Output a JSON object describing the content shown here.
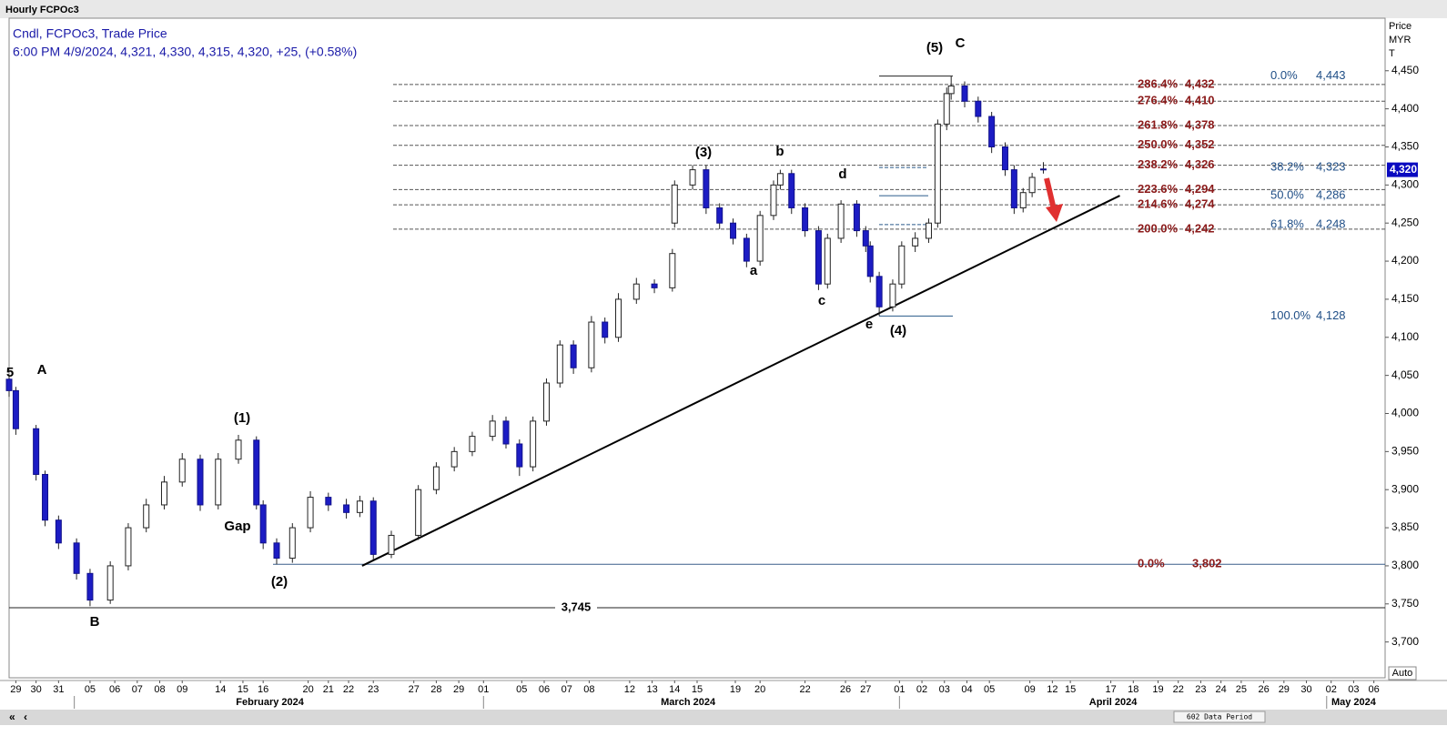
{
  "chart_data": {
    "type": "candlestick",
    "title": "Hourly FCPOc3",
    "legend_line1": "Cndl, FCPOc3, Trade Price",
    "legend_line2": "6:00 PM 4/9/2024, 4,321, 4,330, 4,315, 4,320, +25, (+0.58%)",
    "y_axis_label": [
      "Price",
      "MYR",
      "T"
    ],
    "last_price": {
      "value": 4320,
      "label": "4,320"
    },
    "auto_label": "Auto",
    "scroll_label": "602 Data Period",
    "ylim": [
      3653,
      4519
    ],
    "yticks": [
      {
        "value": 3700,
        "label": "3,700"
      },
      {
        "value": 3750,
        "label": "3,750"
      },
      {
        "value": 3800,
        "label": "3,800"
      },
      {
        "value": 3850,
        "label": "3,850"
      },
      {
        "value": 3900,
        "label": "3,900"
      },
      {
        "value": 3950,
        "label": "3,950"
      },
      {
        "value": 4000,
        "label": "4,000"
      },
      {
        "value": 4050,
        "label": "4,050"
      },
      {
        "value": 4100,
        "label": "4,100"
      },
      {
        "value": 4150,
        "label": "4,150"
      },
      {
        "value": 4200,
        "label": "4,200"
      },
      {
        "value": 4250,
        "label": "4,250"
      },
      {
        "value": 4300,
        "label": "4,300"
      },
      {
        "value": 4350,
        "label": "4,350"
      },
      {
        "value": 4400,
        "label": "4,400"
      },
      {
        "value": 4450,
        "label": "4,450"
      }
    ],
    "xlim": [
      0,
      61.2
    ],
    "xticks": [
      {
        "value": 0.3,
        "label": "29"
      },
      {
        "value": 1.2,
        "label": "30"
      },
      {
        "value": 2.2,
        "label": "31"
      },
      {
        "value": 3.6,
        "label": "05"
      },
      {
        "value": 4.7,
        "label": "06"
      },
      {
        "value": 5.7,
        "label": "07"
      },
      {
        "value": 6.7,
        "label": "08"
      },
      {
        "value": 7.7,
        "label": "09"
      },
      {
        "value": 9.4,
        "label": "14"
      },
      {
        "value": 10.4,
        "label": "15"
      },
      {
        "value": 11.3,
        "label": "16"
      },
      {
        "value": 13.3,
        "label": "20"
      },
      {
        "value": 14.2,
        "label": "21"
      },
      {
        "value": 15.1,
        "label": "22"
      },
      {
        "value": 16.2,
        "label": "23"
      },
      {
        "value": 18.0,
        "label": "27"
      },
      {
        "value": 19.0,
        "label": "28"
      },
      {
        "value": 20.0,
        "label": "29"
      },
      {
        "value": 21.1,
        "label": "01"
      },
      {
        "value": 22.8,
        "label": "05"
      },
      {
        "value": 23.8,
        "label": "06"
      },
      {
        "value": 24.8,
        "label": "07"
      },
      {
        "value": 25.8,
        "label": "08"
      },
      {
        "value": 27.6,
        "label": "12"
      },
      {
        "value": 28.6,
        "label": "13"
      },
      {
        "value": 29.6,
        "label": "14"
      },
      {
        "value": 30.6,
        "label": "15"
      },
      {
        "value": 32.3,
        "label": "19"
      },
      {
        "value": 33.4,
        "label": "20"
      },
      {
        "value": 35.4,
        "label": "22"
      },
      {
        "value": 37.2,
        "label": "26"
      },
      {
        "value": 38.1,
        "label": "27"
      },
      {
        "value": 39.6,
        "label": "01"
      },
      {
        "value": 40.6,
        "label": "02"
      },
      {
        "value": 41.6,
        "label": "03"
      },
      {
        "value": 42.6,
        "label": "04"
      },
      {
        "value": 43.6,
        "label": "05"
      },
      {
        "value": 45.4,
        "label": "09"
      },
      {
        "value": 46.4,
        "label": "12"
      },
      {
        "value": 47.2,
        "label": "15"
      },
      {
        "value": 49.0,
        "label": "17"
      },
      {
        "value": 50.0,
        "label": "18"
      },
      {
        "value": 51.1,
        "label": "19"
      },
      {
        "value": 52.0,
        "label": "22"
      },
      {
        "value": 53.0,
        "label": "23"
      },
      {
        "value": 53.9,
        "label": "24"
      },
      {
        "value": 54.8,
        "label": "25"
      },
      {
        "value": 55.8,
        "label": "26"
      },
      {
        "value": 56.7,
        "label": "29"
      },
      {
        "value": 57.7,
        "label": "30"
      },
      {
        "value": 58.8,
        "label": "02"
      },
      {
        "value": 59.8,
        "label": "03"
      },
      {
        "value": 60.7,
        "label": "06"
      }
    ],
    "months": [
      {
        "value": 11.6,
        "label": "February 2024",
        "start": 2.9
      },
      {
        "value": 30.2,
        "label": "March 2024",
        "start": 21.1
      },
      {
        "value": 49.1,
        "label": "April 2024",
        "start": 39.6
      },
      {
        "value": 59.8,
        "label": "May 2024",
        "start": 58.6
      }
    ],
    "candles": {
      "x": [
        0.0,
        0.3,
        1.2,
        1.6,
        2.2,
        3.0,
        3.6,
        4.5,
        5.3,
        6.1,
        6.9,
        7.7,
        8.5,
        9.3,
        10.2,
        11.0,
        11.3,
        11.9,
        12.6,
        13.4,
        14.2,
        15.0,
        15.6,
        16.2,
        17.0,
        18.2,
        19.0,
        19.8,
        20.6,
        21.5,
        22.1,
        22.7,
        23.3,
        23.9,
        24.5,
        25.1,
        25.9,
        26.5,
        27.1,
        27.9,
        28.7,
        29.5,
        29.6,
        30.4,
        31.0,
        31.6,
        32.2,
        32.8,
        33.4,
        34.0,
        34.3,
        34.8,
        35.4,
        36.0,
        36.4,
        37.0,
        37.7,
        38.1,
        38.3,
        38.7,
        39.3,
        39.7,
        40.3,
        40.9,
        41.3,
        41.7,
        41.9,
        42.5,
        43.1,
        43.7,
        44.3,
        44.7,
        45.1,
        45.5,
        46.0
      ],
      "ohlc": [
        [
          4045,
          4050,
          4022,
          4030
        ],
        [
          4030,
          4035,
          3972,
          3980
        ],
        [
          3980,
          3985,
          3912,
          3920
        ],
        [
          3920,
          3925,
          3852,
          3860
        ],
        [
          3860,
          3866,
          3822,
          3830
        ],
        [
          3830,
          3836,
          3782,
          3790
        ],
        [
          3790,
          3796,
          3747,
          3755
        ],
        [
          3755,
          3806,
          3750,
          3800
        ],
        [
          3800,
          3856,
          3794,
          3850
        ],
        [
          3850,
          3888,
          3844,
          3880
        ],
        [
          3880,
          3918,
          3874,
          3910
        ],
        [
          3910,
          3948,
          3904,
          3940
        ],
        [
          3940,
          3946,
          3872,
          3880
        ],
        [
          3880,
          3948,
          3874,
          3940
        ],
        [
          3940,
          3972,
          3934,
          3965
        ],
        [
          3965,
          3970,
          3874,
          3880
        ],
        [
          3880,
          3886,
          3822,
          3830
        ],
        [
          3830,
          3836,
          3802,
          3810
        ],
        [
          3810,
          3856,
          3804,
          3850
        ],
        [
          3850,
          3898,
          3844,
          3890
        ],
        [
          3890,
          3896,
          3872,
          3880
        ],
        [
          3880,
          3888,
          3862,
          3870
        ],
        [
          3870,
          3892,
          3864,
          3885
        ],
        [
          3885,
          3890,
          3808,
          3815
        ],
        [
          3815,
          3846,
          3810,
          3840
        ],
        [
          3840,
          3906,
          3834,
          3900
        ],
        [
          3900,
          3936,
          3894,
          3930
        ],
        [
          3930,
          3956,
          3924,
          3950
        ],
        [
          3950,
          3976,
          3944,
          3970
        ],
        [
          3970,
          3998,
          3964,
          3990
        ],
        [
          3990,
          3996,
          3954,
          3960
        ],
        [
          3960,
          3966,
          3918,
          3930
        ],
        [
          3930,
          3996,
          3924,
          3990
        ],
        [
          3990,
          4046,
          3984,
          4040
        ],
        [
          4040,
          4096,
          4034,
          4090
        ],
        [
          4090,
          4096,
          4052,
          4060
        ],
        [
          4060,
          4128,
          4054,
          4120
        ],
        [
          4120,
          4126,
          4092,
          4100
        ],
        [
          4100,
          4158,
          4094,
          4150
        ],
        [
          4150,
          4178,
          4144,
          4170
        ],
        [
          4170,
          4176,
          4158,
          4165
        ],
        [
          4165,
          4216,
          4160,
          4210
        ],
        [
          4250,
          4306,
          4244,
          4300
        ],
        [
          4300,
          4326,
          4294,
          4320
        ],
        [
          4320,
          4326,
          4262,
          4270
        ],
        [
          4270,
          4276,
          4242,
          4250
        ],
        [
          4250,
          4256,
          4222,
          4230
        ],
        [
          4230,
          4236,
          4192,
          4200
        ],
        [
          4200,
          4266,
          4194,
          4260
        ],
        [
          4260,
          4306,
          4254,
          4300
        ],
        [
          4300,
          4320,
          4294,
          4315
        ],
        [
          4315,
          4320,
          4262,
          4270
        ],
        [
          4270,
          4276,
          4232,
          4240
        ],
        [
          4240,
          4246,
          4162,
          4170
        ],
        [
          4170,
          4236,
          4164,
          4230
        ],
        [
          4230,
          4280,
          4224,
          4275
        ],
        [
          4275,
          4280,
          4232,
          4240
        ],
        [
          4240,
          4246,
          4212,
          4220
        ],
        [
          4220,
          4226,
          4172,
          4180
        ],
        [
          4180,
          4186,
          4128,
          4140
        ],
        [
          4140,
          4176,
          4134,
          4170
        ],
        [
          4170,
          4226,
          4164,
          4220
        ],
        [
          4220,
          4238,
          4212,
          4230
        ],
        [
          4230,
          4256,
          4224,
          4250
        ],
        [
          4250,
          4386,
          4244,
          4380
        ],
        [
          4380,
          4428,
          4372,
          4420
        ],
        [
          4420,
          4443,
          4412,
          4430
        ],
        [
          4430,
          4436,
          4402,
          4410
        ],
        [
          4410,
          4416,
          4382,
          4390
        ],
        [
          4390,
          4396,
          4342,
          4350
        ],
        [
          4350,
          4356,
          4312,
          4320
        ],
        [
          4320,
          4326,
          4262,
          4270
        ],
        [
          4270,
          4296,
          4264,
          4290
        ],
        [
          4290,
          4316,
          4284,
          4310
        ],
        [
          4321,
          4330,
          4315,
          4320
        ]
      ]
    },
    "extensions": [
      {
        "percent": "286.4%",
        "value": 4432,
        "label": "4,432"
      },
      {
        "percent": "276.4%",
        "value": 4410,
        "label": "4,410"
      },
      {
        "percent": "261.8%",
        "value": 4378,
        "label": "4,378"
      },
      {
        "percent": "250.0%",
        "value": 4352,
        "label": "4,352"
      },
      {
        "percent": "238.2%",
        "value": 4326,
        "label": "4,326"
      },
      {
        "percent": "223.6%",
        "value": 4294,
        "label": "4,294"
      },
      {
        "percent": "214.6%",
        "value": 4274,
        "label": "4,274"
      },
      {
        "percent": "200.0%",
        "value": 4242,
        "label": "4,242"
      },
      {
        "percent": "0.0%",
        "value": 3802,
        "label": "3,802"
      }
    ],
    "retracements": [
      {
        "percent": "0.0%",
        "value": 4443,
        "label": "4,443"
      },
      {
        "percent": "38.2%",
        "value": 4323,
        "label": "4,323"
      },
      {
        "percent": "50.0%",
        "value": 4286,
        "label": "4,286"
      },
      {
        "percent": "61.8%",
        "value": 4248,
        "label": "4,248"
      },
      {
        "percent": "100.0%",
        "value": 4128,
        "label": "4,128"
      }
    ],
    "support": {
      "value": 3745,
      "label": "3,745"
    },
    "trendline": {
      "x": [
        15.7,
        49.4
      ],
      "y": [
        3800,
        4286
      ]
    },
    "annotations": [
      "5",
      "A",
      "(1)",
      "Gap",
      "(2)",
      "B",
      "(3)",
      "b",
      "d",
      "a",
      "c",
      "e",
      "(4)",
      "(5)",
      "C"
    ]
  }
}
